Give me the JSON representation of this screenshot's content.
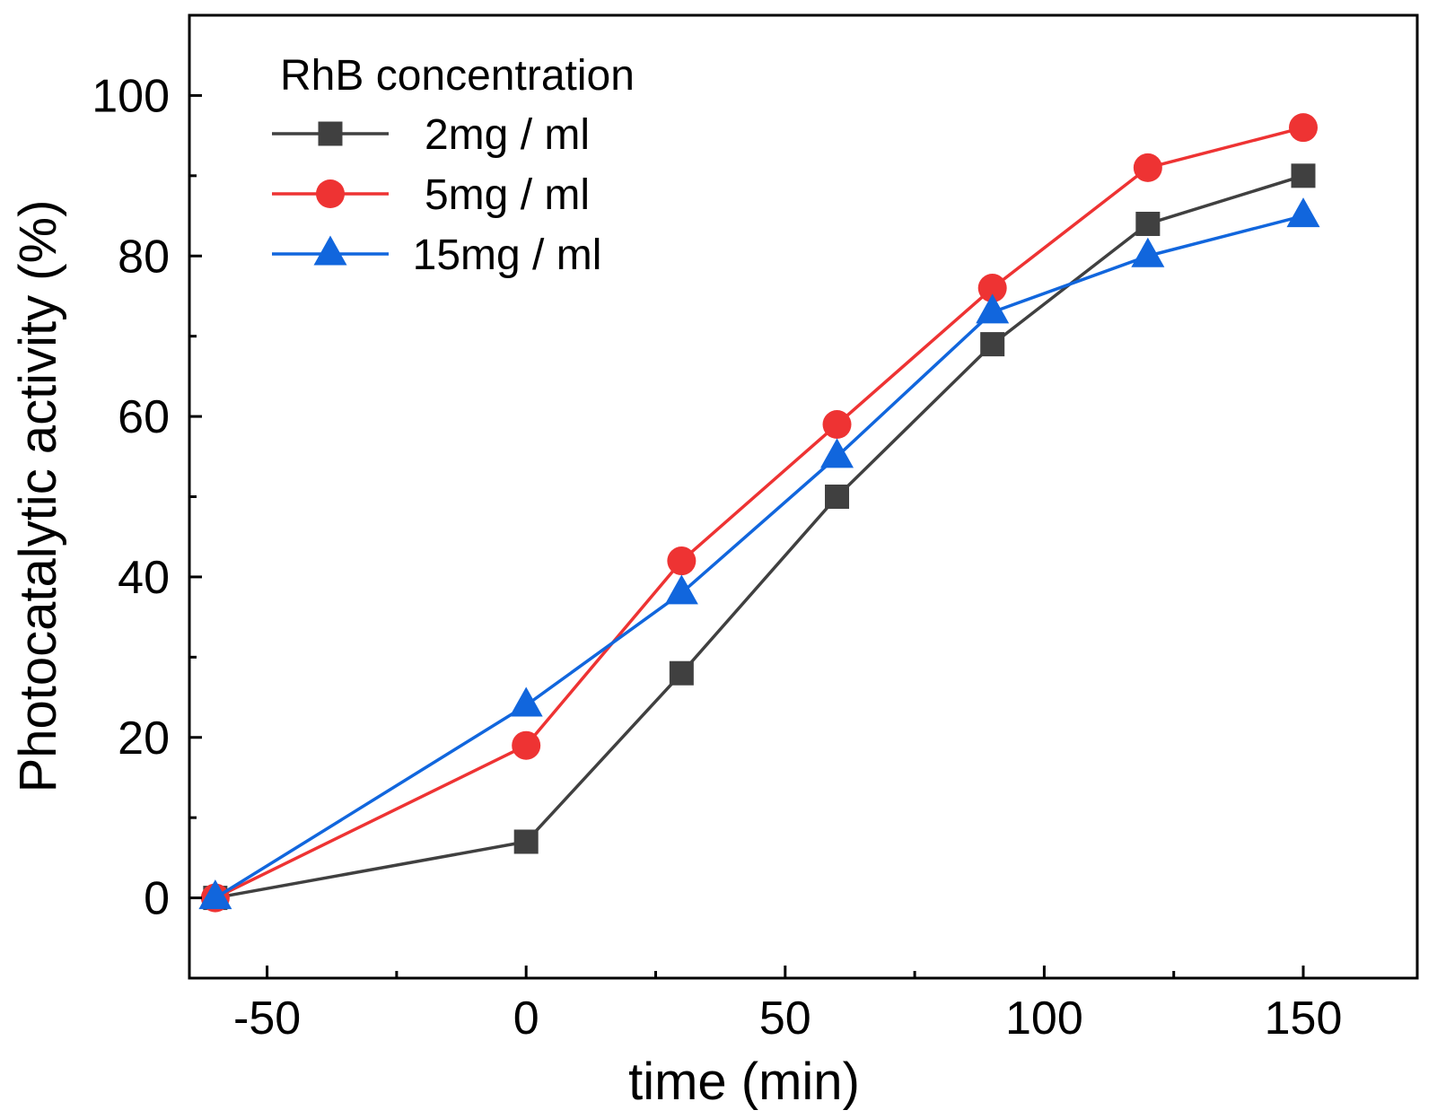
{
  "chart_data": {
    "type": "line",
    "xlabel": "time (min)",
    "ylabel": "Photocatalytic activity (%)",
    "xlim": [
      -65,
      172
    ],
    "ylim": [
      -10,
      110
    ],
    "xticks": [
      -50,
      0,
      50,
      100,
      150
    ],
    "xtick_labels": [
      "-50",
      "0",
      "50",
      "100",
      "150"
    ],
    "xminor": [
      -25,
      25,
      75,
      125
    ],
    "yticks": [
      0,
      20,
      40,
      60,
      80,
      100
    ],
    "ytick_labels": [
      "0",
      "20",
      "40",
      "60",
      "80",
      "100"
    ],
    "yminor": [
      10,
      30,
      50,
      70,
      90
    ],
    "legend_title": "RhB concentration",
    "legend_position": "top-left",
    "x": [
      -60,
      0,
      30,
      60,
      90,
      120,
      150
    ],
    "series": [
      {
        "name": "2mg / ml",
        "color": "#404040",
        "marker": "square",
        "values": [
          0,
          7,
          28,
          50,
          69,
          84,
          90
        ]
      },
      {
        "name": "5mg / ml",
        "color": "#ee3333",
        "marker": "circle",
        "values": [
          0,
          19,
          42,
          59,
          76,
          91,
          96
        ]
      },
      {
        "name": "15mg / ml",
        "color": "#1166dd",
        "marker": "triangle",
        "values": [
          0,
          24,
          38,
          55,
          73,
          80,
          85
        ]
      }
    ]
  }
}
